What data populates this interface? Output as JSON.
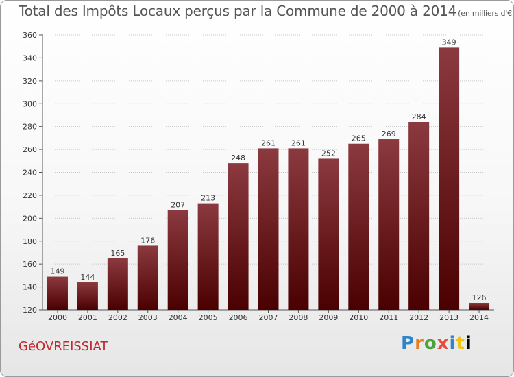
{
  "chart_data": {
    "type": "bar",
    "title": "Total des Impôts Locaux perçus par la Commune de 2000 à 2014",
    "unit": "(en milliers d'€)",
    "categories": [
      "2000",
      "2001",
      "2002",
      "2003",
      "2004",
      "2005",
      "2006",
      "2007",
      "2008",
      "2009",
      "2010",
      "2011",
      "2012",
      "2013",
      "2014"
    ],
    "values": [
      149,
      144,
      165,
      176,
      207,
      213,
      248,
      261,
      261,
      252,
      265,
      269,
      284,
      349,
      126
    ],
    "ylim": [
      120,
      360
    ],
    "yticks": [
      120,
      140,
      160,
      180,
      200,
      220,
      240,
      260,
      280,
      300,
      320,
      340,
      360
    ],
    "xlabel": "",
    "ylabel": "",
    "grid": true
  },
  "commune": "GéOVREISSIAT",
  "logo": [
    "P",
    "r",
    "o",
    "x",
    "i",
    "t",
    "i"
  ],
  "colors": {
    "bar_top": "#8b3a3f",
    "bar_bottom": "#4a0000",
    "grid": "#c8c8c8",
    "commune": "#c0282d"
  }
}
